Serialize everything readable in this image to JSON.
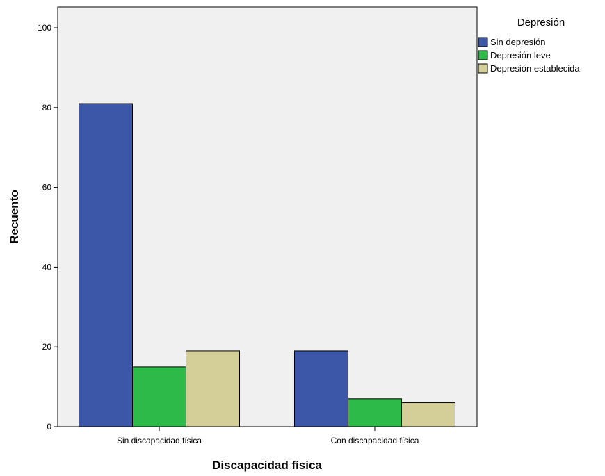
{
  "chart_data": {
    "type": "bar",
    "categories": [
      "Sin discapacidad física",
      "Con discapacidad física"
    ],
    "series": [
      {
        "name": "Sin depresión",
        "values": [
          81,
          19
        ],
        "color": "#3C56A8"
      },
      {
        "name": "Depresión leve",
        "values": [
          15,
          7
        ],
        "color": "#2DBA48"
      },
      {
        "name": "Depresión establecida",
        "values": [
          19,
          6
        ],
        "color": "#D4CF98"
      }
    ],
    "xlabel": "Discapacidad física",
    "ylabel": "Recuento",
    "ylim": [
      0,
      100
    ],
    "yticks": [
      0,
      20,
      40,
      60,
      80,
      100
    ],
    "legend_title": "Depresión",
    "legend_position": "right",
    "plot_background": "#F0F0F0",
    "grid": false
  }
}
